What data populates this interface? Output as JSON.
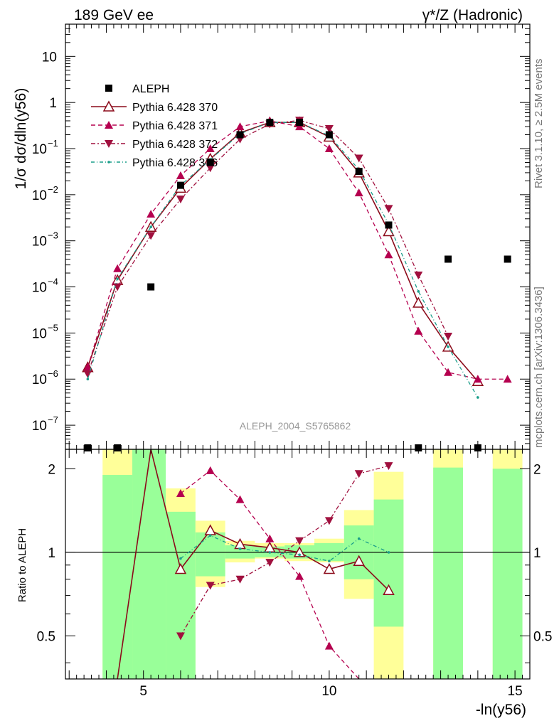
{
  "header": {
    "left": "189 GeV ee",
    "right": "γ*/Z (Hadronic)"
  },
  "side_labels": {
    "rivet": "Rivet 3.1.10, ≥ 2.5M events",
    "mcplots": "mcplots.cern.ch [arXiv:1306.3436]"
  },
  "watermark": "ALEPH_2004_S5765862",
  "axes": {
    "ylabel_main": "1/σ  dσ/dln(y56)",
    "ylabel_ratio": "Ratio to ALEPH",
    "xlabel": "-ln(y56)"
  },
  "chart_data": {
    "type": "scatter",
    "x_range": [
      2.9,
      15.4
    ],
    "y_range_main": [
      3e-08,
      50
    ],
    "y_scale_main": "log",
    "y_range_ratio": [
      0.35,
      2.35
    ],
    "y_scale_ratio": "log",
    "x_ticks": [
      5,
      10,
      15
    ],
    "y_ticks_main": [
      {
        "v": 1e-07,
        "label": "10",
        "exp": "−7"
      },
      {
        "v": 1e-06,
        "label": "10",
        "exp": "−6"
      },
      {
        "v": 1e-05,
        "label": "10",
        "exp": "−5"
      },
      {
        "v": 0.0001,
        "label": "10",
        "exp": "−4"
      },
      {
        "v": 0.001,
        "label": "10",
        "exp": "−3"
      },
      {
        "v": 0.01,
        "label": "10",
        "exp": "−2"
      },
      {
        "v": 0.1,
        "label": "10",
        "exp": "−1"
      },
      {
        "v": 1,
        "label": "1",
        "exp": ""
      },
      {
        "v": 10,
        "label": "10",
        "exp": ""
      }
    ],
    "y_ticks_ratio": [
      {
        "v": 0.5,
        "label": "0.5"
      },
      {
        "v": 1,
        "label": "1"
      },
      {
        "v": 2,
        "label": "2"
      }
    ],
    "legend_position": "top-left",
    "data": {
      "name": "ALEPH",
      "x": [
        3.5,
        4.3,
        5.2,
        6.0,
        6.8,
        7.6,
        8.4,
        9.2,
        10.0,
        10.8,
        11.6,
        12.4,
        13.2,
        14.0,
        14.8
      ],
      "y": [
        0,
        0,
        0.0001,
        0.016,
        0.05,
        0.2,
        0.37,
        0.37,
        0.2,
        0.032,
        0.0022,
        0,
        0.0004,
        0,
        0.0004
      ]
    },
    "ratio_bands": [
      {
        "x0": 3.9,
        "x1": 4.7,
        "green_lo": 0.1,
        "green_hi": 1.9,
        "yellow_lo": 0.1,
        "yellow_hi": 3.0
      },
      {
        "x0": 4.7,
        "x1": 5.6,
        "green_lo": 0.1,
        "green_hi": 3.0,
        "yellow_lo": 0.1,
        "yellow_hi": 3.0
      },
      {
        "x0": 5.6,
        "x1": 6.4,
        "green_lo": 0.1,
        "green_hi": 1.4,
        "yellow_lo": 0.1,
        "yellow_hi": 1.7
      },
      {
        "x0": 6.4,
        "x1": 7.2,
        "green_lo": 0.82,
        "green_hi": 1.18,
        "yellow_lo": 0.75,
        "yellow_hi": 1.3
      },
      {
        "x0": 7.2,
        "x1": 8.0,
        "green_lo": 0.95,
        "green_hi": 1.06,
        "yellow_lo": 0.92,
        "yellow_hi": 1.1
      },
      {
        "x0": 8.0,
        "x1": 8.8,
        "green_lo": 0.96,
        "green_hi": 1.05,
        "yellow_lo": 0.95,
        "yellow_hi": 1.08
      },
      {
        "x0": 8.8,
        "x1": 9.6,
        "green_lo": 0.95,
        "green_hi": 1.06,
        "yellow_lo": 0.93,
        "yellow_hi": 1.08
      },
      {
        "x0": 9.6,
        "x1": 10.4,
        "green_lo": 0.93,
        "green_hi": 1.08,
        "yellow_lo": 0.92,
        "yellow_hi": 1.12
      },
      {
        "x0": 10.4,
        "x1": 11.2,
        "green_lo": 0.8,
        "green_hi": 1.25,
        "yellow_lo": 0.68,
        "yellow_hi": 1.42
      },
      {
        "x0": 11.2,
        "x1": 12.0,
        "green_lo": 0.54,
        "green_hi": 1.55,
        "yellow_lo": 0.1,
        "yellow_hi": 1.95
      },
      {
        "x0": 12.8,
        "x1": 13.6,
        "green_lo": 0.1,
        "green_hi": 2.02,
        "yellow_lo": 0.1,
        "yellow_hi": 3.0
      },
      {
        "x0": 14.4,
        "x1": 15.2,
        "green_lo": 0.1,
        "green_hi": 2.0,
        "yellow_lo": 0.1,
        "yellow_hi": 2.45
      }
    ],
    "series": [
      {
        "name": "Pythia 6.428 370",
        "color": "#8b0a1a",
        "marker": "open-triangle-up",
        "dash": "",
        "x": [
          3.5,
          4.3,
          5.2,
          6.0,
          6.8,
          7.6,
          8.4,
          9.2,
          10.0,
          10.8,
          11.6,
          12.4,
          13.2,
          14.0
        ],
        "y": [
          1.8e-06,
          0.00014,
          0.002,
          0.014,
          0.06,
          0.22,
          0.37,
          0.37,
          0.18,
          0.03,
          0.0016,
          4.5e-05,
          5e-06,
          9e-07
        ],
        "ratio": [
          null,
          0.1,
          10,
          0.87,
          1.2,
          1.07,
          1.04,
          1.0,
          0.87,
          0.93,
          0.73,
          null,
          null,
          null
        ]
      },
      {
        "name": "Pythia 6.428 371",
        "color": "#b5004f",
        "marker": "filled-triangle-up",
        "dash": "6,4",
        "x": [
          3.5,
          4.3,
          5.2,
          6.0,
          6.8,
          7.6,
          8.4,
          9.2,
          10.0,
          10.8,
          11.6,
          12.4,
          13.2,
          14.0,
          14.8
        ],
        "y": [
          1.8e-06,
          0.00025,
          0.0038,
          0.026,
          0.1,
          0.3,
          0.4,
          0.3,
          0.1,
          0.011,
          0.0005,
          1.1e-05,
          1.4e-06,
          1e-06,
          1e-06
        ],
        "ratio": [
          null,
          null,
          null,
          1.63,
          1.97,
          1.55,
          1.12,
          0.82,
          0.46,
          0.3,
          null,
          null,
          null,
          null,
          null
        ]
      },
      {
        "name": "Pythia 6.428 372",
        "color": "#a0103e",
        "marker": "filled-triangle-down",
        "dash": "6,3,2,3",
        "x": [
          3.5,
          4.3,
          5.2,
          6.0,
          6.8,
          7.6,
          8.4,
          9.2,
          10.0,
          10.8,
          11.6,
          12.4,
          13.2
        ],
        "y": [
          1.3e-06,
          0.0001,
          0.0013,
          0.008,
          0.038,
          0.16,
          0.34,
          0.41,
          0.27,
          0.062,
          0.005,
          0.00018,
          8.5e-06
        ],
        "ratio": [
          null,
          null,
          null,
          0.5,
          0.76,
          0.8,
          0.92,
          1.1,
          1.3,
          1.92,
          2.05,
          null,
          null
        ]
      },
      {
        "name": "Pythia 6.428 376",
        "color": "#1a9e8a",
        "marker": "small-dot",
        "dash": "5,3,1,3",
        "x": [
          3.5,
          4.3,
          5.2,
          6.0,
          6.8,
          7.6,
          8.4,
          9.2,
          10.0,
          10.8,
          11.6,
          12.4,
          13.2,
          14.0
        ],
        "y": [
          1e-06,
          0.00015,
          0.002,
          0.016,
          0.058,
          0.21,
          0.37,
          0.37,
          0.19,
          0.035,
          0.0023,
          8e-05,
          5e-06,
          4e-07
        ],
        "ratio": [
          null,
          null,
          null,
          0.95,
          1.15,
          1.03,
          1.0,
          0.98,
          0.93,
          1.12,
          1.0,
          null,
          null,
          null
        ]
      }
    ]
  }
}
